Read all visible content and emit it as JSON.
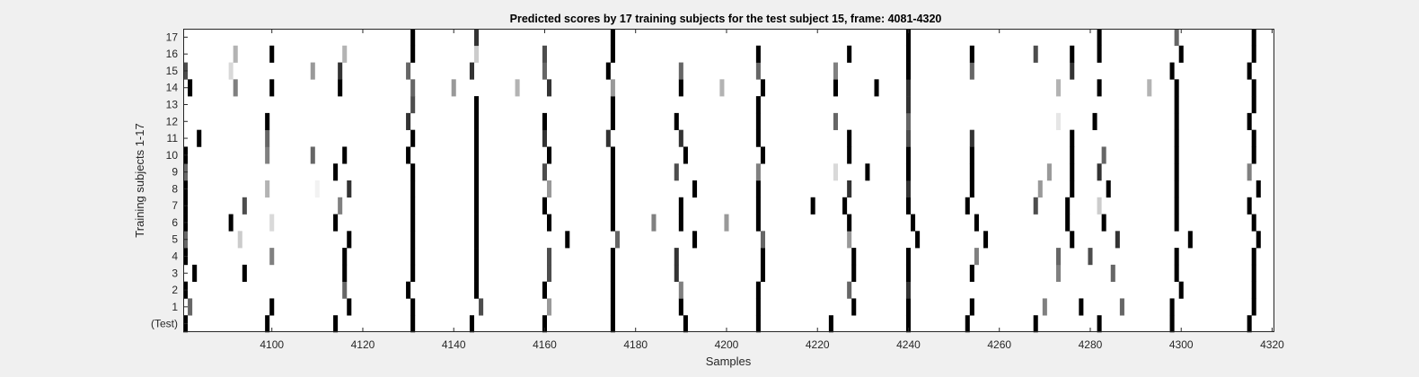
{
  "chart_data": {
    "type": "heatmap",
    "title": "Predicted scores by 17 training subjects for the test subject 15, frame: 4081-4320",
    "xlabel": "Samples",
    "ylabel": "Training subjects 1-17",
    "xlim": [
      4081,
      4320
    ],
    "x_ticks": [
      4100,
      4120,
      4140,
      4160,
      4180,
      4200,
      4220,
      4240,
      4260,
      4280,
      4300,
      4320
    ],
    "y_tick_labels": [
      "(Test)",
      "1",
      "2",
      "3",
      "4",
      "5",
      "6",
      "7",
      "8",
      "9",
      "10",
      "11",
      "12",
      "13",
      "14",
      "15",
      "16",
      "17"
    ],
    "colormap": "gray (white = 0, black = 1)",
    "background_color": "#ffffff",
    "figure_color": "#f0f0f0",
    "rows": [
      {
        "row": "(Test)",
        "cells": [
          [
            4081,
            1
          ],
          [
            4099,
            1
          ],
          [
            4114,
            1
          ],
          [
            4131,
            1
          ],
          [
            4144,
            1
          ],
          [
            4160,
            1
          ],
          [
            4175,
            1
          ],
          [
            4191,
            1
          ],
          [
            4207,
            1
          ],
          [
            4223,
            1
          ],
          [
            4240,
            1
          ],
          [
            4253,
            1
          ],
          [
            4268,
            1
          ],
          [
            4282,
            1
          ],
          [
            4298,
            1
          ],
          [
            4315,
            1
          ]
        ]
      },
      {
        "row": "1",
        "cells": [
          [
            4082,
            0.6
          ],
          [
            4100,
            1
          ],
          [
            4117,
            1
          ],
          [
            4131,
            1
          ],
          [
            4146,
            0.7
          ],
          [
            4161,
            0.4
          ],
          [
            4175,
            1
          ],
          [
            4190,
            1
          ],
          [
            4207,
            1
          ],
          [
            4228,
            1
          ],
          [
            4240,
            1
          ],
          [
            4254,
            1
          ],
          [
            4270,
            0.5
          ],
          [
            4278,
            1
          ],
          [
            4287,
            0.6
          ],
          [
            4298,
            1
          ],
          [
            4316,
            1
          ]
        ]
      },
      {
        "row": "2",
        "cells": [
          [
            4081,
            1
          ],
          [
            4116,
            0.6
          ],
          [
            4130,
            1
          ],
          [
            4145,
            1
          ],
          [
            4160,
            1
          ],
          [
            4175,
            1
          ],
          [
            4190,
            0.5
          ],
          [
            4207,
            1
          ],
          [
            4227,
            0.6
          ],
          [
            4240,
            0.8
          ],
          [
            4300,
            1
          ],
          [
            4316,
            1
          ]
        ]
      },
      {
        "row": "3",
        "cells": [
          [
            4083,
            1
          ],
          [
            4094,
            1
          ],
          [
            4116,
            1
          ],
          [
            4131,
            1
          ],
          [
            4145,
            1
          ],
          [
            4161,
            0.7
          ],
          [
            4175,
            1
          ],
          [
            4189,
            0.8
          ],
          [
            4208,
            1
          ],
          [
            4228,
            1
          ],
          [
            4240,
            1
          ],
          [
            4254,
            1
          ],
          [
            4273,
            0.5
          ],
          [
            4285,
            0.6
          ],
          [
            4299,
            1
          ],
          [
            4316,
            1
          ]
        ]
      },
      {
        "row": "4",
        "cells": [
          [
            4081,
            1
          ],
          [
            4100,
            0.5
          ],
          [
            4116,
            1
          ],
          [
            4131,
            1
          ],
          [
            4145,
            1
          ],
          [
            4161,
            0.7
          ],
          [
            4175,
            1
          ],
          [
            4189,
            0.8
          ],
          [
            4208,
            1
          ],
          [
            4228,
            1
          ],
          [
            4240,
            1
          ],
          [
            4255,
            0.5
          ],
          [
            4273,
            0.6
          ],
          [
            4280,
            0.7
          ],
          [
            4299,
            1
          ],
          [
            4316,
            1
          ]
        ]
      },
      {
        "row": "5",
        "cells": [
          [
            4081,
            0.6
          ],
          [
            4093,
            0.2
          ],
          [
            4117,
            1
          ],
          [
            4131,
            1
          ],
          [
            4145,
            1
          ],
          [
            4165,
            1
          ],
          [
            4176,
            0.6
          ],
          [
            4193,
            1
          ],
          [
            4208,
            0.6
          ],
          [
            4227,
            0.4
          ],
          [
            4242,
            1
          ],
          [
            4257,
            1
          ],
          [
            4276,
            1
          ],
          [
            4286,
            0.8
          ],
          [
            4302,
            1
          ],
          [
            4317,
            1
          ]
        ]
      },
      {
        "row": "6",
        "cells": [
          [
            4081,
            1
          ],
          [
            4091,
            1
          ],
          [
            4100,
            0.15
          ],
          [
            4114,
            1
          ],
          [
            4131,
            1
          ],
          [
            4145,
            1
          ],
          [
            4161,
            1
          ],
          [
            4175,
            1
          ],
          [
            4184,
            0.5
          ],
          [
            4190,
            1
          ],
          [
            4200,
            0.4
          ],
          [
            4207,
            1
          ],
          [
            4227,
            1
          ],
          [
            4241,
            1
          ],
          [
            4255,
            1
          ],
          [
            4275,
            1
          ],
          [
            4283,
            1
          ],
          [
            4299,
            1
          ],
          [
            4316,
            1
          ]
        ]
      },
      {
        "row": "7",
        "cells": [
          [
            4081,
            1
          ],
          [
            4094,
            0.7
          ],
          [
            4115,
            0.5
          ],
          [
            4131,
            1
          ],
          [
            4145,
            1
          ],
          [
            4160,
            1
          ],
          [
            4175,
            1
          ],
          [
            4190,
            1
          ],
          [
            4207,
            1
          ],
          [
            4219,
            1
          ],
          [
            4226,
            1
          ],
          [
            4240,
            1
          ],
          [
            4253,
            1
          ],
          [
            4268,
            0.7
          ],
          [
            4275,
            1
          ],
          [
            4282,
            0.2
          ],
          [
            4299,
            1
          ],
          [
            4315,
            1
          ]
        ]
      },
      {
        "row": "8",
        "cells": [
          [
            4081,
            1
          ],
          [
            4099,
            0.3
          ],
          [
            4110,
            0.05
          ],
          [
            4117,
            0.8
          ],
          [
            4131,
            1
          ],
          [
            4145,
            1
          ],
          [
            4161,
            0.4
          ],
          [
            4175,
            1
          ],
          [
            4193,
            1
          ],
          [
            4207,
            1
          ],
          [
            4227,
            0.8
          ],
          [
            4240,
            0.8
          ],
          [
            4254,
            1
          ],
          [
            4269,
            0.4
          ],
          [
            4276,
            1
          ],
          [
            4284,
            1
          ],
          [
            4299,
            1
          ],
          [
            4317,
            1
          ]
        ]
      },
      {
        "row": "9",
        "cells": [
          [
            4081,
            0.6
          ],
          [
            4114,
            1
          ],
          [
            4131,
            1
          ],
          [
            4145,
            1
          ],
          [
            4160,
            0.7
          ],
          [
            4175,
            1
          ],
          [
            4189,
            0.7
          ],
          [
            4207,
            0.5
          ],
          [
            4224,
            0.15
          ],
          [
            4231,
            1
          ],
          [
            4240,
            1
          ],
          [
            4254,
            1
          ],
          [
            4271,
            0.4
          ],
          [
            4276,
            1
          ],
          [
            4282,
            0.8
          ],
          [
            4299,
            1
          ],
          [
            4315,
            0.5
          ]
        ]
      },
      {
        "row": "10",
        "cells": [
          [
            4081,
            1
          ],
          [
            4099,
            0.5
          ],
          [
            4109,
            0.6
          ],
          [
            4116,
            1
          ],
          [
            4130,
            1
          ],
          [
            4145,
            1
          ],
          [
            4161,
            1
          ],
          [
            4175,
            1
          ],
          [
            4191,
            1
          ],
          [
            4208,
            1
          ],
          [
            4227,
            1
          ],
          [
            4240,
            1
          ],
          [
            4254,
            1
          ],
          [
            4276,
            1
          ],
          [
            4283,
            0.6
          ],
          [
            4299,
            1
          ],
          [
            4316,
            1
          ]
        ]
      },
      {
        "row": "11",
        "cells": [
          [
            4084,
            1
          ],
          [
            4099,
            0.6
          ],
          [
            4131,
            1
          ],
          [
            4145,
            1
          ],
          [
            4160,
            0.8
          ],
          [
            4174,
            0.8
          ],
          [
            4190,
            0.8
          ],
          [
            4207,
            1
          ],
          [
            4227,
            1
          ],
          [
            4240,
            0.7
          ],
          [
            4254,
            0.8
          ],
          [
            4276,
            1
          ],
          [
            4299,
            1
          ],
          [
            4316,
            1
          ]
        ]
      },
      {
        "row": "12",
        "cells": [
          [
            4099,
            1
          ],
          [
            4130,
            0.8
          ],
          [
            4145,
            1
          ],
          [
            4160,
            1
          ],
          [
            4175,
            1
          ],
          [
            4189,
            1
          ],
          [
            4207,
            1
          ],
          [
            4224,
            0.6
          ],
          [
            4240,
            0.6
          ],
          [
            4273,
            0.1
          ],
          [
            4281,
            1
          ],
          [
            4299,
            1
          ],
          [
            4315,
            1
          ]
        ]
      },
      {
        "row": "13",
        "cells": [
          [
            4131,
            0.7
          ],
          [
            4145,
            1
          ],
          [
            4175,
            1
          ],
          [
            4207,
            1
          ],
          [
            4240,
            0.8
          ],
          [
            4299,
            1
          ],
          [
            4316,
            1
          ]
        ]
      },
      {
        "row": "14",
        "cells": [
          [
            4082,
            1
          ],
          [
            4092,
            0.5
          ],
          [
            4100,
            1
          ],
          [
            4115,
            1
          ],
          [
            4131,
            0.6
          ],
          [
            4140,
            0.4
          ],
          [
            4154,
            0.3
          ],
          [
            4161,
            0.8
          ],
          [
            4175,
            0.4
          ],
          [
            4190,
            1
          ],
          [
            4199,
            0.3
          ],
          [
            4208,
            1
          ],
          [
            4224,
            1
          ],
          [
            4233,
            1
          ],
          [
            4240,
            0.8
          ],
          [
            4273,
            0.3
          ],
          [
            4282,
            1
          ],
          [
            4293,
            0.3
          ],
          [
            4299,
            1
          ],
          [
            4316,
            1
          ]
        ]
      },
      {
        "row": "15",
        "cells": [
          [
            4081,
            0.7
          ],
          [
            4091,
            0.15
          ],
          [
            4109,
            0.4
          ],
          [
            4115,
            0.8
          ],
          [
            4130,
            0.6
          ],
          [
            4144,
            0.8
          ],
          [
            4160,
            0.6
          ],
          [
            4174,
            1
          ],
          [
            4190,
            0.6
          ],
          [
            4207,
            0.6
          ],
          [
            4224,
            0.5
          ],
          [
            4240,
            1
          ],
          [
            4254,
            0.6
          ],
          [
            4276,
            0.8
          ],
          [
            4298,
            1
          ],
          [
            4315,
            1
          ]
        ]
      },
      {
        "row": "16",
        "cells": [
          [
            4092,
            0.3
          ],
          [
            4100,
            1
          ],
          [
            4116,
            0.3
          ],
          [
            4131,
            1
          ],
          [
            4145,
            0.2
          ],
          [
            4160,
            0.7
          ],
          [
            4175,
            1
          ],
          [
            4207,
            1
          ],
          [
            4227,
            1
          ],
          [
            4240,
            1
          ],
          [
            4254,
            1
          ],
          [
            4268,
            0.7
          ],
          [
            4276,
            1
          ],
          [
            4282,
            1
          ],
          [
            4300,
            1
          ],
          [
            4316,
            1
          ]
        ]
      },
      {
        "row": "17",
        "cells": [
          [
            4131,
            1
          ],
          [
            4145,
            0.8
          ],
          [
            4175,
            1
          ],
          [
            4240,
            1
          ],
          [
            4282,
            1
          ],
          [
            4299,
            0.6
          ],
          [
            4316,
            1
          ]
        ]
      }
    ]
  }
}
